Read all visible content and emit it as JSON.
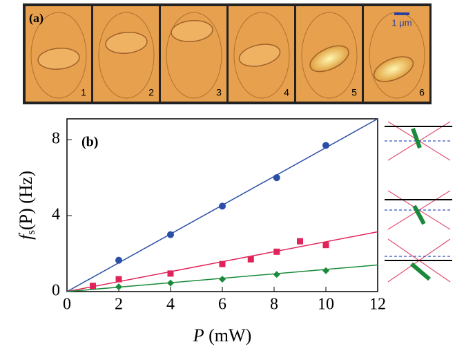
{
  "panel_a": {
    "label": "(a)",
    "scale_label": "1 μm",
    "frames": [
      "1",
      "2",
      "3",
      "4",
      "5",
      "6"
    ]
  },
  "chart_data": {
    "type": "scatter",
    "panel_label": "(b)",
    "xlabel": {
      "symbol": "P",
      "rest": "(mW)"
    },
    "ylabel": {
      "symbol": "f",
      "subscript": "s",
      "rest": "(P) (Hz)"
    },
    "xlim": [
      0,
      12
    ],
    "ylim": [
      0,
      9.1
    ],
    "xticks": [
      0,
      2,
      4,
      6,
      8,
      10,
      12
    ],
    "yticks": [
      0,
      4,
      8
    ],
    "series": [
      {
        "color": "#2b4fa8",
        "marker": "circle",
        "x": [
          2,
          4,
          6,
          8.1,
          10
        ],
        "values": [
          1.65,
          3.0,
          4.5,
          6.0,
          7.7
        ]
      },
      {
        "color": "#e0245a",
        "marker": "square",
        "x": [
          1,
          2,
          4,
          6,
          7.1,
          8.1,
          9,
          10
        ],
        "values": [
          0.3,
          0.65,
          0.95,
          1.45,
          1.7,
          2.1,
          2.65,
          2.45
        ]
      },
      {
        "color": "#1a8a3a",
        "marker": "diamond",
        "x": [
          2,
          4,
          6,
          8.1,
          10
        ],
        "values": [
          0.25,
          0.45,
          0.65,
          0.9,
          1.1
        ]
      }
    ],
    "fits": [
      {
        "color": "#2b4fa8",
        "x": [
          0,
          12
        ],
        "values": [
          0,
          9.1
        ]
      },
      {
        "color": "#e0245a",
        "x": [
          0,
          12
        ],
        "values": [
          0,
          3.15
        ]
      },
      {
        "color": "#1a8a3a",
        "x": [
          0,
          12
        ],
        "values": [
          0,
          1.4
        ]
      }
    ]
  }
}
